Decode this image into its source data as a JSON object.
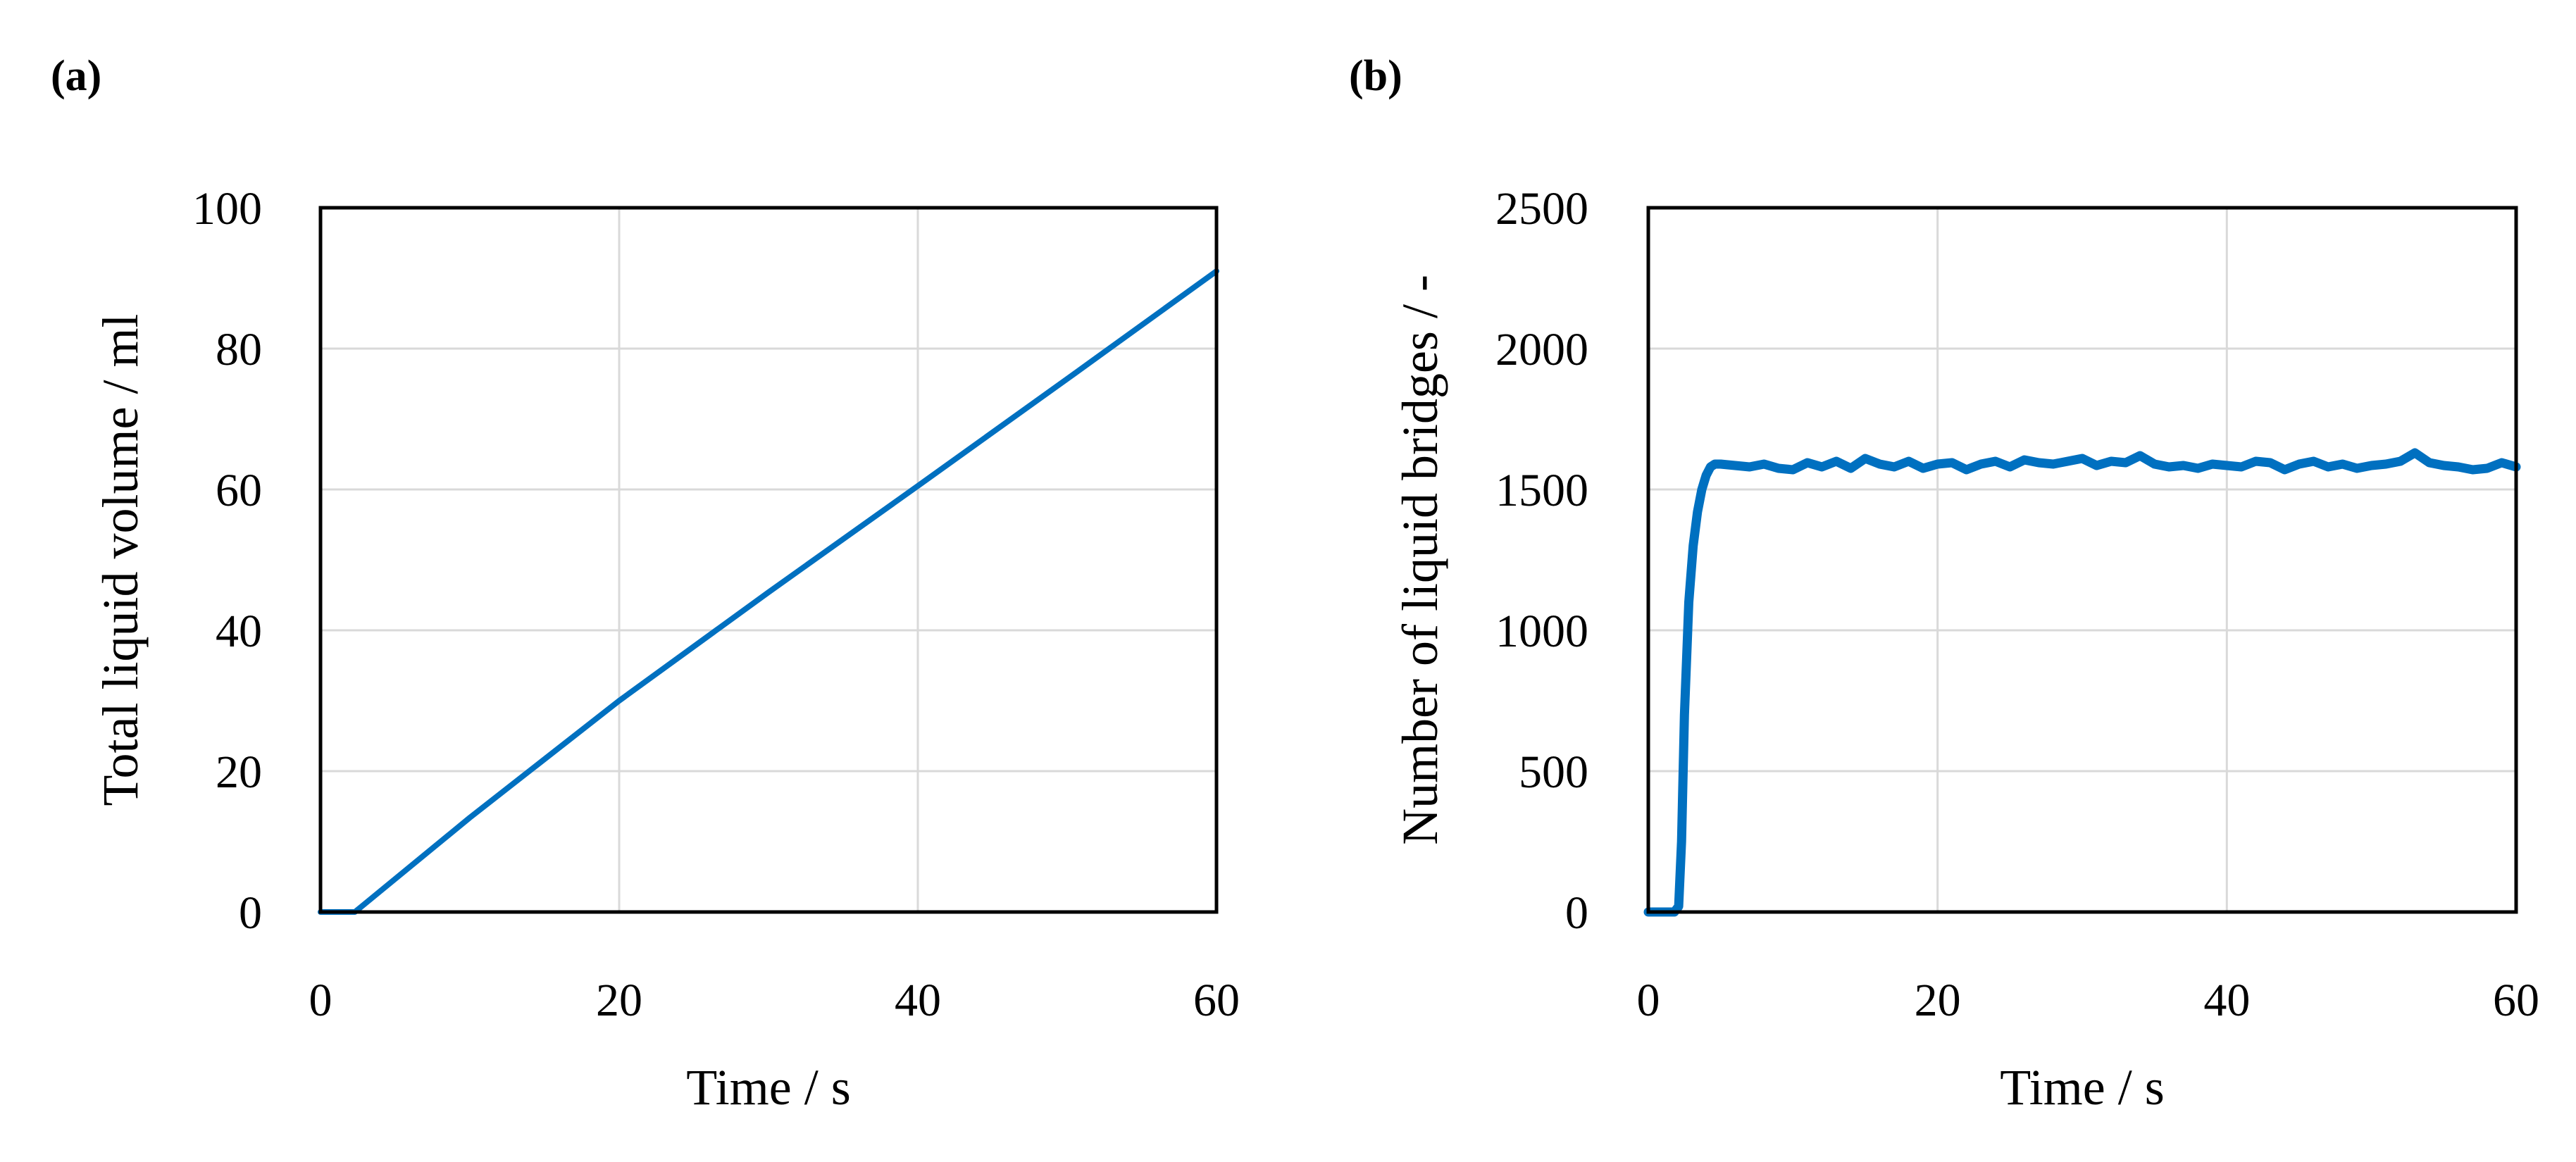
{
  "chart_data": [
    {
      "type": "line",
      "panel_label": "(a)",
      "xlabel": "Time / s",
      "ylabel": "Total liquid volume / ml",
      "xlim": [
        0,
        60
      ],
      "ylim": [
        0,
        100
      ],
      "xticks": [
        0,
        20,
        40,
        60
      ],
      "yticks": [
        0,
        20,
        40,
        60,
        80,
        100
      ],
      "grid": true,
      "series": [
        {
          "color": "#0070c0",
          "x": [
            0,
            2,
            2.3,
            10,
            20,
            30,
            40,
            50,
            60
          ],
          "y": [
            0,
            0,
            0,
            13.4,
            30.0,
            45.4,
            60.5,
            75.7,
            91.0
          ]
        }
      ]
    },
    {
      "type": "line",
      "panel_label": "(b)",
      "xlabel": "Time / s",
      "ylabel": "Number of liquid bridges / -",
      "xlim": [
        0,
        60
      ],
      "ylim": [
        0,
        2500
      ],
      "xticks": [
        0,
        20,
        40,
        60
      ],
      "yticks": [
        0,
        500,
        1000,
        1500,
        2000,
        2500
      ],
      "grid": true,
      "series": [
        {
          "color": "#0070c0",
          "x": [
            0,
            1,
            1.8,
            2.1,
            2.3,
            2.5,
            2.8,
            3.1,
            3.4,
            3.7,
            4.0,
            4.3,
            4.6,
            5,
            6,
            7,
            8,
            9,
            10,
            11,
            12,
            13,
            14,
            15,
            16,
            17,
            18,
            19,
            20,
            21,
            22,
            23,
            24,
            25,
            26,
            27,
            28,
            29,
            30,
            31,
            32,
            33,
            34,
            35,
            36,
            37,
            38,
            39,
            40,
            41,
            42,
            43,
            44,
            45,
            46,
            47,
            48,
            49,
            50,
            51,
            52,
            53,
            54,
            55,
            56,
            57,
            58,
            59,
            60
          ],
          "y": [
            0,
            0,
            0,
            20,
            250,
            700,
            1100,
            1300,
            1420,
            1500,
            1550,
            1580,
            1590,
            1590,
            1585,
            1580,
            1590,
            1575,
            1570,
            1595,
            1580,
            1600,
            1575,
            1610,
            1590,
            1580,
            1600,
            1575,
            1590,
            1595,
            1570,
            1590,
            1600,
            1580,
            1605,
            1595,
            1590,
            1600,
            1610,
            1585,
            1600,
            1595,
            1620,
            1590,
            1580,
            1585,
            1575,
            1590,
            1585,
            1580,
            1600,
            1595,
            1570,
            1590,
            1600,
            1580,
            1590,
            1575,
            1585,
            1590,
            1600,
            1630,
            1595,
            1585,
            1580,
            1570,
            1575,
            1595,
            1580
          ]
        }
      ]
    }
  ]
}
